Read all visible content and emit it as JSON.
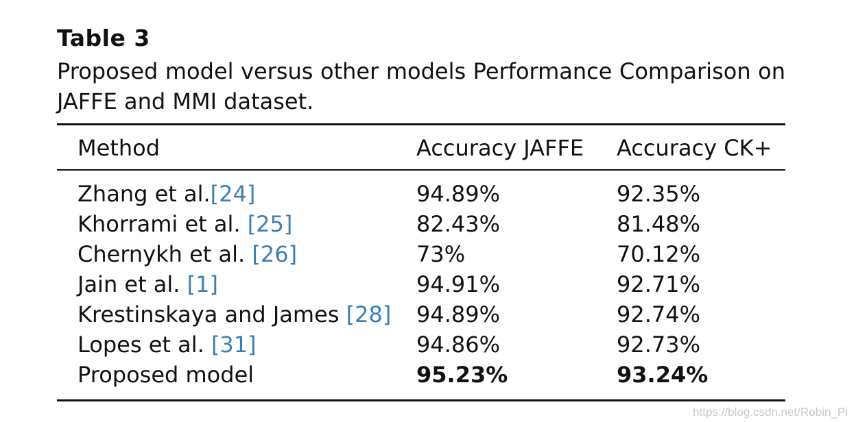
{
  "table": {
    "label": "Table 3",
    "caption": "Proposed model versus other models Performance Comparison on JAFFE and MMI dataset.",
    "headers": {
      "method": "Method",
      "jaffe": "Accuracy JAFFE",
      "ck": "Accuracy CK+"
    },
    "rows": [
      {
        "method": "Zhang et al.",
        "ref": "[24]",
        "jaffe": "94.89%",
        "ck": "92.35%"
      },
      {
        "method": "Khorrami et al. ",
        "ref": "[25]",
        "jaffe": "82.43%",
        "ck": "81.48%"
      },
      {
        "method": "Chernykh et al. ",
        "ref": "[26]",
        "jaffe": "73%",
        "ck": "70.12%"
      },
      {
        "method": "Jain et al. ",
        "ref": "[1]",
        "jaffe": "94.91%",
        "ck": "92.71%"
      },
      {
        "method": "Krestinskaya and James ",
        "ref": "[28]",
        "jaffe": "94.89%",
        "ck": "92.74%"
      },
      {
        "method": "Lopes et al. ",
        "ref": "[31]",
        "jaffe": "94.86%",
        "ck": "92.73%"
      },
      {
        "method": "Proposed model",
        "ref": "",
        "jaffe": "95.23%",
        "ck": "93.24%"
      }
    ]
  },
  "watermark": "https://blog.csdn.net/Robin_Pi",
  "colors": {
    "text": "#111111",
    "reference_link": "#3a7fb5",
    "watermark": "#c9c9c9"
  }
}
